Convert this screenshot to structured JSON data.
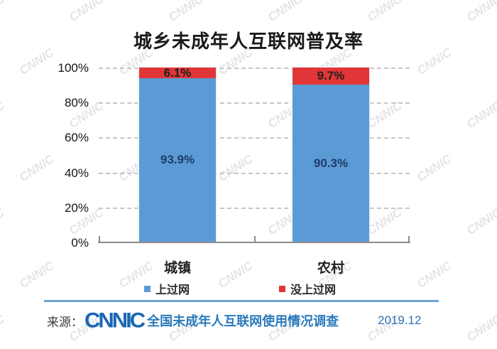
{
  "chart_data": {
    "type": "bar",
    "stacked": true,
    "title": "城乡未成年人互联网普及率",
    "categories": [
      "城镇",
      "农村"
    ],
    "series": [
      {
        "name": "上过网",
        "color": "#5b9bd5",
        "values": [
          93.9,
          90.3
        ],
        "display": [
          "93.9%",
          "90.3%"
        ]
      },
      {
        "name": "没上过网",
        "color": "#e23537",
        "values": [
          6.1,
          9.7
        ],
        "display": [
          "6.1%",
          "9.7%"
        ]
      }
    ],
    "ylim": [
      0,
      100
    ],
    "y_ticks": [
      "100%",
      "80%",
      "60%",
      "40%",
      "20%",
      "0%"
    ],
    "grid": "horizontal-dashed",
    "legend_position": "bottom"
  },
  "watermark": {
    "text": "CNNIC"
  },
  "footer": {
    "source_prefix": "来源：",
    "logo": "CNNIC",
    "source_text": "全国未成年人互联网使用情况调查",
    "date": "2019.12"
  },
  "colors": {
    "bar_online": "#5b9bd5",
    "bar_offline": "#e23537",
    "label_on_blue": "#1e3c66",
    "label_on_red": "#1f1f1f",
    "divider": "#6fa3cf",
    "logo_blue": "#1a66b4",
    "source_blue": "#2a7abc",
    "gridline": "#c6c6c6",
    "axis": "#8c8c8c"
  }
}
